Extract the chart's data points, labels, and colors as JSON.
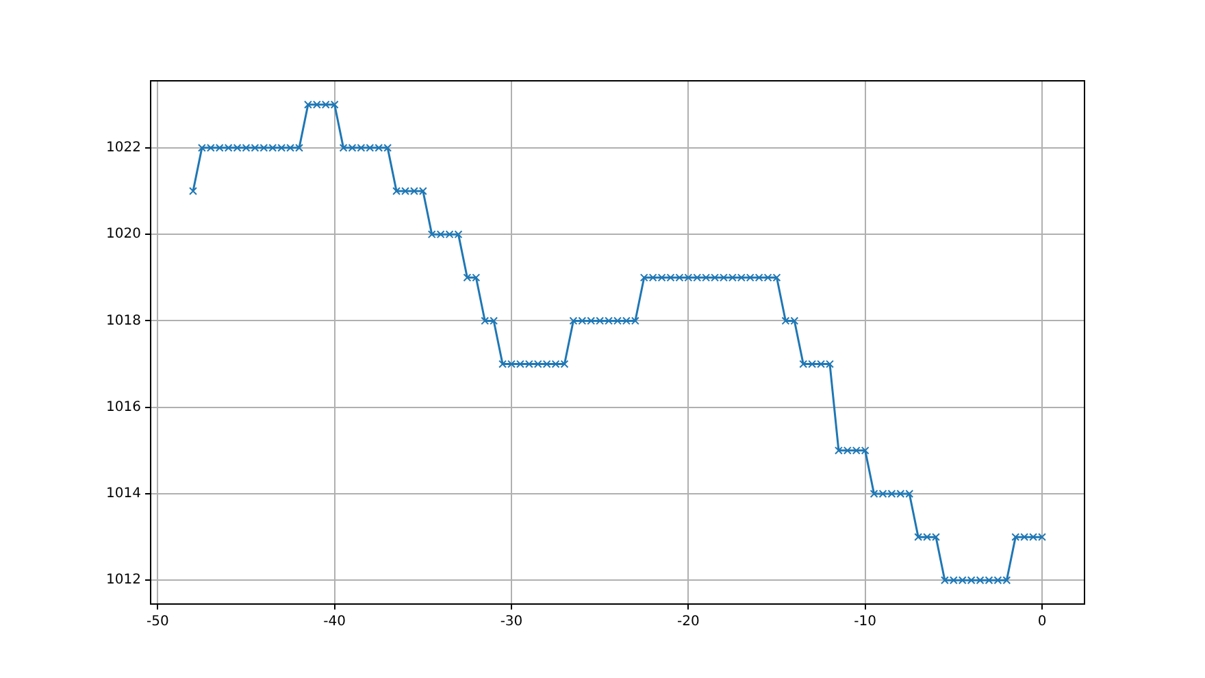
{
  "chart_data": {
    "type": "line",
    "x": [
      -48,
      -47.5,
      -47,
      -46.5,
      -46,
      -45.5,
      -45,
      -44.5,
      -44,
      -43.5,
      -43,
      -42.5,
      -42,
      -41.5,
      -41,
      -40.5,
      -40,
      -39.5,
      -39,
      -38.5,
      -38,
      -37.5,
      -37,
      -36.5,
      -36,
      -35.5,
      -35,
      -34.5,
      -34,
      -33.5,
      -33,
      -32.5,
      -32,
      -31.5,
      -31,
      -30.5,
      -30,
      -29.5,
      -29,
      -28.5,
      -28,
      -27.5,
      -27,
      -26.5,
      -26,
      -25.5,
      -25,
      -24.5,
      -24,
      -23.5,
      -23,
      -22.5,
      -22,
      -21.5,
      -21,
      -20.5,
      -20,
      -19.5,
      -19,
      -18.5,
      -18,
      -17.5,
      -17,
      -16.5,
      -16,
      -15.5,
      -15,
      -14.5,
      -14,
      -13.5,
      -13,
      -12.5,
      -12,
      -11.5,
      -11,
      -10.5,
      -10,
      -9.5,
      -9,
      -8.5,
      -8,
      -7.5,
      -7,
      -6.5,
      -6,
      -5.5,
      -5,
      -4.5,
      -4,
      -3.5,
      -3,
      -2.5,
      -2,
      -1.5,
      -1,
      -0.5,
      0
    ],
    "series": [
      {
        "color": "#1f77b4",
        "values": [
          1021,
          1022,
          1022,
          1022,
          1022,
          1022,
          1022,
          1022,
          1022,
          1022,
          1022,
          1022,
          1022,
          1023,
          1023,
          1023,
          1023,
          1022,
          1022,
          1022,
          1022,
          1022,
          1022,
          1021,
          1021,
          1021,
          1021,
          1020,
          1020,
          1020,
          1020,
          1019,
          1019,
          1018,
          1018,
          1017,
          1017,
          1017,
          1017,
          1017,
          1017,
          1017,
          1017,
          1018,
          1018,
          1018,
          1018,
          1018,
          1018,
          1018,
          1018,
          1019,
          1019,
          1019,
          1019,
          1019,
          1019,
          1019,
          1019,
          1019,
          1019,
          1019,
          1019,
          1019,
          1019,
          1019,
          1019,
          1018,
          1018,
          1017,
          1017,
          1017,
          1017,
          1015,
          1015,
          1015,
          1015,
          1014,
          1014,
          1014,
          1014,
          1014,
          1013,
          1013,
          1013,
          1012,
          1012,
          1012,
          1012,
          1012,
          1012,
          1012,
          1012,
          1013,
          1013,
          1013,
          1013
        ]
      }
    ],
    "xlim": [
      -50.4,
      2.4
    ],
    "xticks": [
      -50,
      -40,
      -30,
      -20,
      -10,
      0
    ],
    "ylim": [
      1011.45,
      1023.55
    ],
    "yticks": [
      1012,
      1014,
      1016,
      1018,
      1020,
      1022
    ],
    "grid": true,
    "marker": "cross",
    "line_style": "solid"
  }
}
